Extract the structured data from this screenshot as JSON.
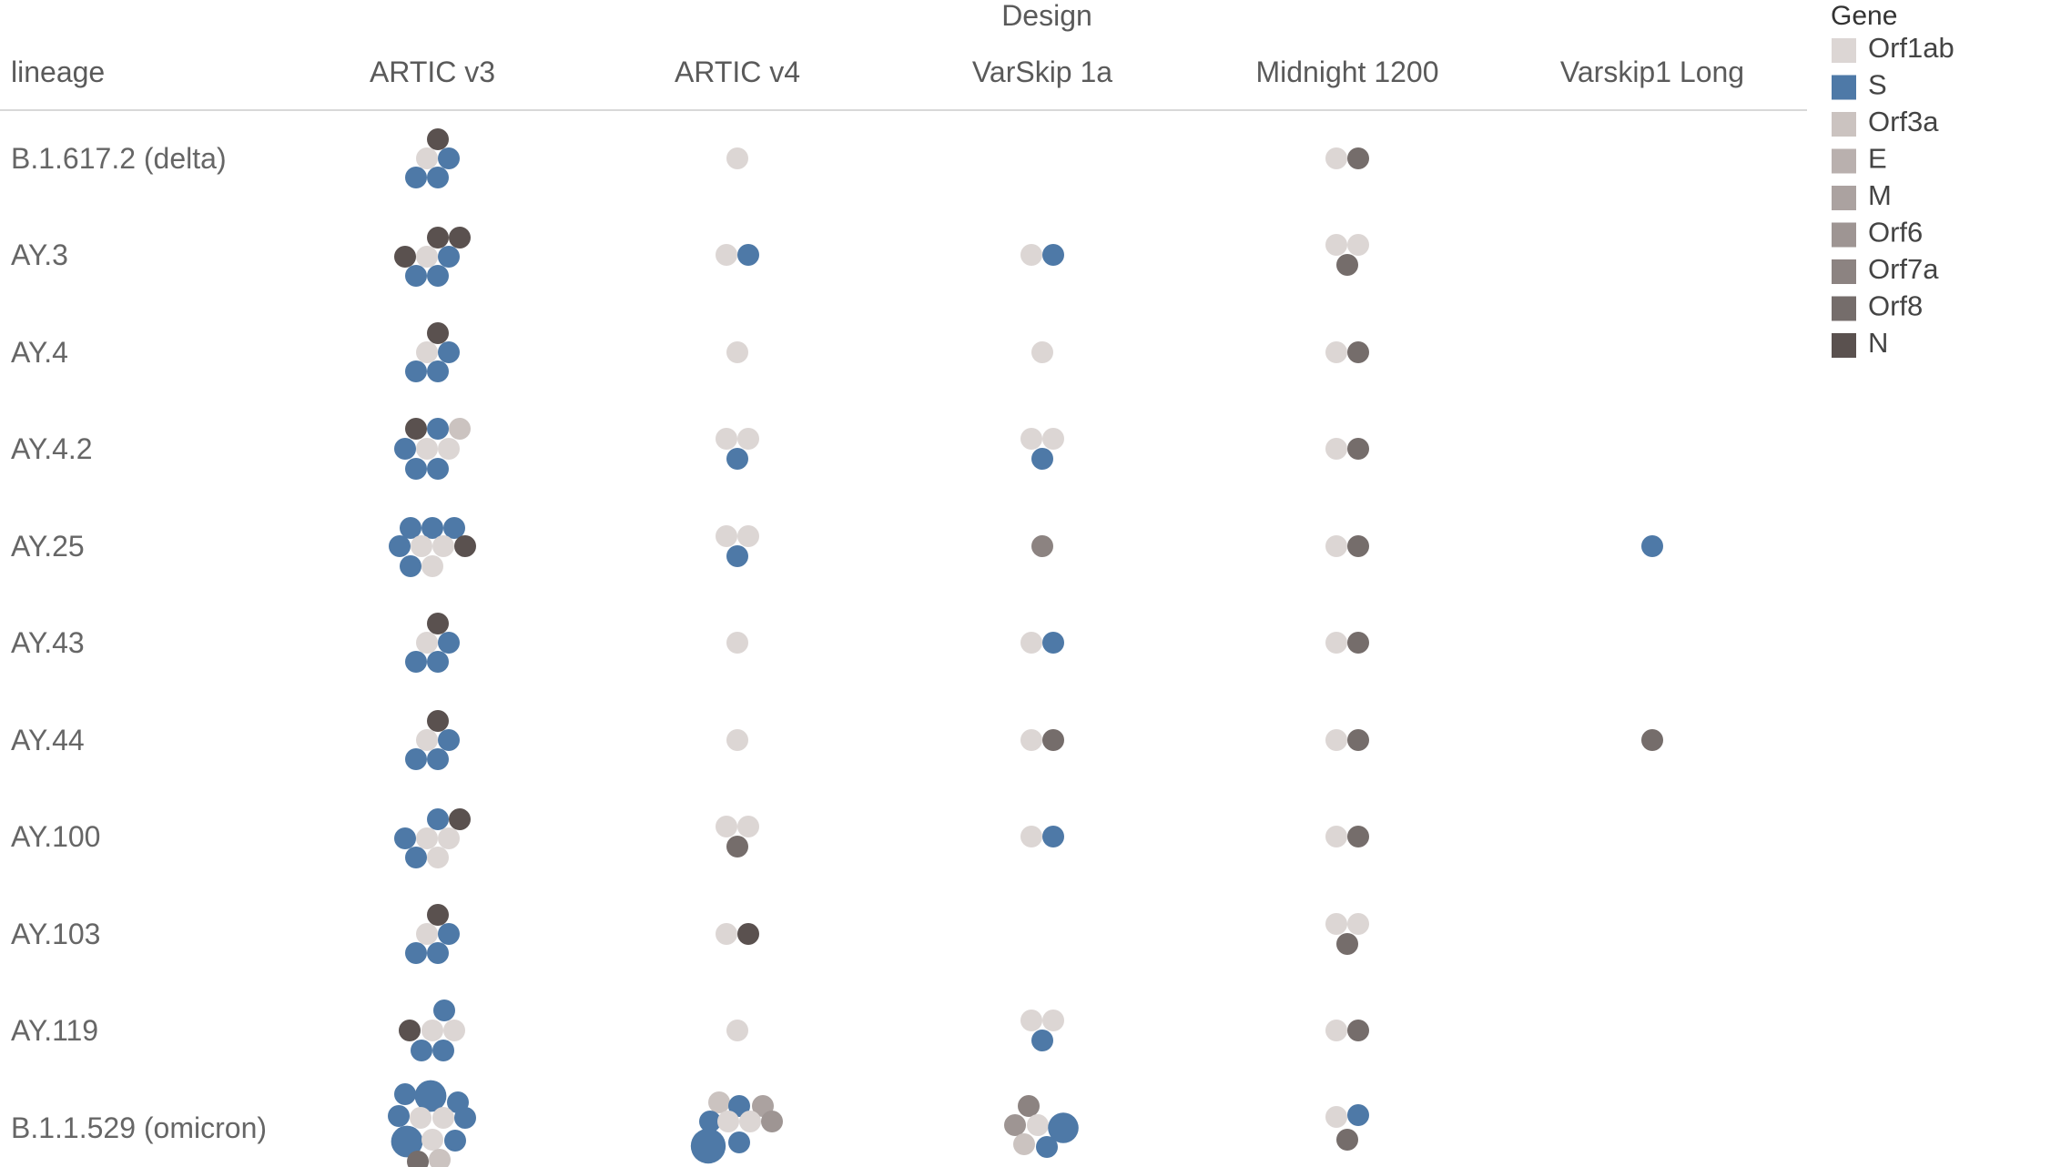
{
  "chart_data": {
    "type": "scatter",
    "x_axis_title": "Design",
    "row_header": "lineage",
    "columns": [
      "ARTIC v3",
      "ARTIC v4",
      "VarSkip 1a",
      "Midnight 1200",
      "Varskip1 Long"
    ],
    "rows": [
      "B.1.617.2 (delta)",
      "AY.3",
      "AY.4",
      "AY.4.2",
      "AY.25",
      "AY.43",
      "AY.44",
      "AY.100",
      "AY.103",
      "AY.119",
      "B.1.1.529 (omicron)"
    ],
    "legend": {
      "title": "Gene",
      "items": [
        {
          "label": "Orf1ab",
          "color": "#dcd6d4"
        },
        {
          "label": "S",
          "color": "#4e79a7"
        },
        {
          "label": "Orf3a",
          "color": "#cbc3c0"
        },
        {
          "label": "E",
          "color": "#b9b0ae"
        },
        {
          "label": "M",
          "color": "#aba2a0"
        },
        {
          "label": "Orf6",
          "color": "#9e9593"
        },
        {
          "label": "Orf7a",
          "color": "#8c8381"
        },
        {
          "label": "Orf8",
          "color": "#756d6b"
        },
        {
          "label": "N",
          "color": "#5a514f"
        }
      ]
    },
    "cells": [
      {
        "row": "B.1.617.2 (delta)",
        "column": "ARTIC v3",
        "genes": [
          "N",
          "Orf1ab",
          "S",
          "S",
          "S"
        ]
      },
      {
        "row": "B.1.617.2 (delta)",
        "column": "ARTIC v4",
        "genes": [
          "Orf1ab"
        ]
      },
      {
        "row": "B.1.617.2 (delta)",
        "column": "Midnight 1200",
        "genes": [
          "Orf1ab",
          "Orf8"
        ]
      },
      {
        "row": "AY.3",
        "column": "ARTIC v3",
        "genes": [
          "N",
          "N",
          "N",
          "Orf1ab",
          "S",
          "S",
          "S"
        ]
      },
      {
        "row": "AY.3",
        "column": "ARTIC v4",
        "genes": [
          "Orf1ab",
          "S"
        ]
      },
      {
        "row": "AY.3",
        "column": "VarSkip 1a",
        "genes": [
          "Orf1ab",
          "S"
        ]
      },
      {
        "row": "AY.3",
        "column": "Midnight 1200",
        "genes": [
          "Orf1ab",
          "Orf1ab",
          "Orf8"
        ]
      },
      {
        "row": "AY.4",
        "column": "ARTIC v3",
        "genes": [
          "N",
          "Orf1ab",
          "S",
          "S",
          "S"
        ]
      },
      {
        "row": "AY.4",
        "column": "ARTIC v4",
        "genes": [
          "Orf1ab"
        ]
      },
      {
        "row": "AY.4",
        "column": "VarSkip 1a",
        "genes": [
          "Orf1ab"
        ]
      },
      {
        "row": "AY.4",
        "column": "Midnight 1200",
        "genes": [
          "Orf1ab",
          "Orf8"
        ]
      },
      {
        "row": "AY.4.2",
        "column": "ARTIC v3",
        "genes": [
          "N",
          "S",
          "Orf3a",
          "S",
          "Orf1ab",
          "Orf1ab",
          "S",
          "S"
        ]
      },
      {
        "row": "AY.4.2",
        "column": "ARTIC v4",
        "genes": [
          "Orf1ab",
          "Orf1ab",
          "S"
        ]
      },
      {
        "row": "AY.4.2",
        "column": "VarSkip 1a",
        "genes": [
          "Orf1ab",
          "Orf1ab",
          "S"
        ]
      },
      {
        "row": "AY.4.2",
        "column": "Midnight 1200",
        "genes": [
          "Orf1ab",
          "Orf8"
        ]
      },
      {
        "row": "AY.25",
        "column": "ARTIC v3",
        "genes": [
          "S",
          "S",
          "S",
          "S",
          "Orf1ab",
          "Orf1ab",
          "N",
          "S",
          "Orf1ab"
        ]
      },
      {
        "row": "AY.25",
        "column": "ARTIC v4",
        "genes": [
          "Orf1ab",
          "Orf1ab",
          "S"
        ]
      },
      {
        "row": "AY.25",
        "column": "VarSkip 1a",
        "genes": [
          "Orf7a"
        ]
      },
      {
        "row": "AY.25",
        "column": "Midnight 1200",
        "genes": [
          "Orf1ab",
          "Orf8"
        ]
      },
      {
        "row": "AY.25",
        "column": "Varskip1 Long",
        "genes": [
          "S"
        ]
      },
      {
        "row": "AY.43",
        "column": "ARTIC v3",
        "genes": [
          "N",
          "Orf1ab",
          "S",
          "S",
          "S"
        ]
      },
      {
        "row": "AY.43",
        "column": "ARTIC v4",
        "genes": [
          "Orf1ab"
        ]
      },
      {
        "row": "AY.43",
        "column": "VarSkip 1a",
        "genes": [
          "Orf1ab",
          "S"
        ]
      },
      {
        "row": "AY.43",
        "column": "Midnight 1200",
        "genes": [
          "Orf1ab",
          "Orf8"
        ]
      },
      {
        "row": "AY.44",
        "column": "ARTIC v3",
        "genes": [
          "N",
          "Orf1ab",
          "S",
          "S",
          "S"
        ]
      },
      {
        "row": "AY.44",
        "column": "ARTIC v4",
        "genes": [
          "Orf1ab"
        ]
      },
      {
        "row": "AY.44",
        "column": "VarSkip 1a",
        "genes": [
          "Orf1ab",
          "Orf8"
        ]
      },
      {
        "row": "AY.44",
        "column": "Midnight 1200",
        "genes": [
          "Orf1ab",
          "Orf8"
        ]
      },
      {
        "row": "AY.44",
        "column": "Varskip1 Long",
        "genes": [
          "Orf8"
        ]
      },
      {
        "row": "AY.100",
        "column": "ARTIC v3",
        "genes": [
          "S",
          "N",
          "S",
          "Orf1ab",
          "Orf1ab",
          "S",
          "Orf1ab"
        ]
      },
      {
        "row": "AY.100",
        "column": "ARTIC v4",
        "genes": [
          "Orf1ab",
          "Orf1ab",
          "Orf8"
        ]
      },
      {
        "row": "AY.100",
        "column": "VarSkip 1a",
        "genes": [
          "Orf1ab",
          "S"
        ]
      },
      {
        "row": "AY.100",
        "column": "Midnight 1200",
        "genes": [
          "Orf1ab",
          "Orf8"
        ]
      },
      {
        "row": "AY.103",
        "column": "ARTIC v3",
        "genes": [
          "N",
          "Orf1ab",
          "S",
          "S",
          "S"
        ]
      },
      {
        "row": "AY.103",
        "column": "ARTIC v4",
        "genes": [
          "Orf1ab",
          "N"
        ]
      },
      {
        "row": "AY.103",
        "column": "Midnight 1200",
        "genes": [
          "Orf1ab",
          "Orf1ab",
          "Orf8"
        ]
      },
      {
        "row": "AY.119",
        "column": "ARTIC v3",
        "genes": [
          "S",
          "N",
          "Orf1ab",
          "Orf1ab",
          "S",
          "S"
        ]
      },
      {
        "row": "AY.119",
        "column": "ARTIC v4",
        "genes": [
          "Orf1ab"
        ]
      },
      {
        "row": "AY.119",
        "column": "VarSkip 1a",
        "genes": [
          "Orf1ab",
          "Orf1ab",
          "S"
        ]
      },
      {
        "row": "AY.119",
        "column": "Midnight 1200",
        "genes": [
          "Orf1ab",
          "Orf8"
        ]
      },
      {
        "row": "B.1.1.529 (omicron)",
        "column": "ARTIC v3",
        "genes": [
          "S",
          "S",
          "S",
          "S",
          "Orf1ab",
          "Orf1ab",
          "S",
          "S",
          "Orf1ab",
          "S",
          "Orf8",
          "Orf3a"
        ]
      },
      {
        "row": "B.1.1.529 (omicron)",
        "column": "ARTIC v4",
        "genes": [
          "Orf3a",
          "S",
          "M",
          "S",
          "Orf1ab",
          "Orf1ab",
          "Orf6",
          "S",
          "S"
        ]
      },
      {
        "row": "B.1.1.529 (omicron)",
        "column": "VarSkip 1a",
        "genes": [
          "Orf7a",
          "Orf6",
          "Orf1ab",
          "S",
          "Orf3a",
          "S"
        ]
      },
      {
        "row": "B.1.1.529 (omicron)",
        "column": "Midnight 1200",
        "genes": [
          "Orf1ab",
          "S",
          "Orf8"
        ]
      }
    ]
  }
}
